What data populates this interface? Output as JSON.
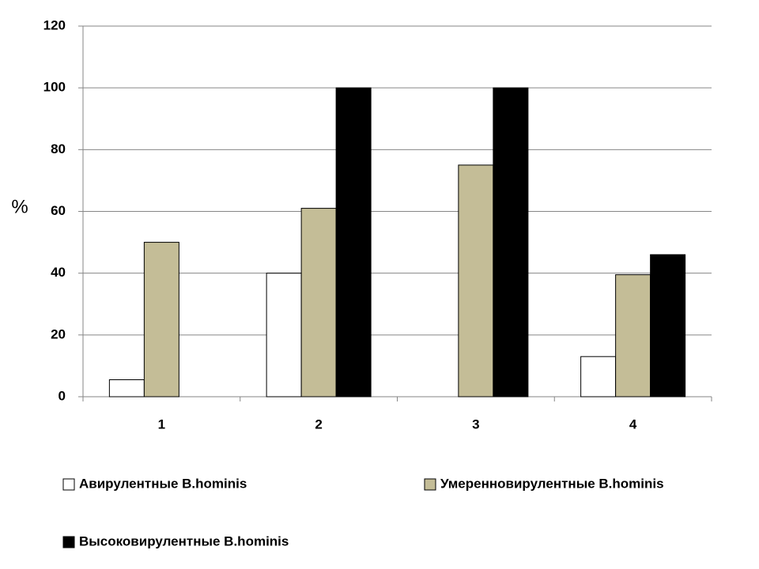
{
  "chart_data": {
    "type": "bar",
    "y_label": "%",
    "categories": [
      "1",
      "2",
      "3",
      "4"
    ],
    "series": [
      {
        "name": "Авирулентные B.hominis",
        "color": "#ffffff",
        "values": [
          5.5,
          40,
          0,
          13
        ]
      },
      {
        "name": "Умеренновирулентные B.hominis",
        "color": "#c4bd97",
        "values": [
          50,
          61,
          75,
          39.5
        ]
      },
      {
        "name": "Высоковирулентные B.hominis",
        "color": "#000000",
        "values": [
          0,
          100,
          100,
          46
        ]
      }
    ],
    "ylim": [
      0,
      120
    ],
    "yticks": [
      0,
      20,
      40,
      60,
      80,
      100,
      120
    ],
    "grid": true,
    "legend": "bottom"
  }
}
